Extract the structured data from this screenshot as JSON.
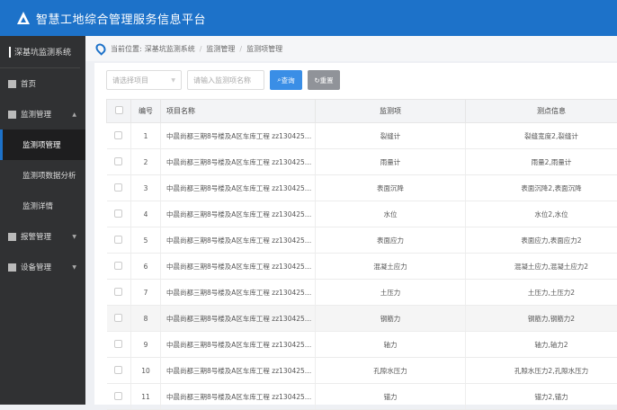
{
  "header": {
    "title": "智慧工地综合管理服务信息平台"
  },
  "sidebar": {
    "system": "深基坑监测系统",
    "items": [
      {
        "label": "首页"
      },
      {
        "label": "监测管理"
      },
      {
        "label": "监测项管理"
      },
      {
        "label": "监测项数据分析"
      },
      {
        "label": "监测详情"
      },
      {
        "label": "报警管理"
      },
      {
        "label": "设备管理"
      }
    ]
  },
  "breadcrumb": {
    "prefix": "当前位置:",
    "items": [
      "深基坑监测系统",
      "监测管理",
      "监测项管理"
    ]
  },
  "filters": {
    "project_placeholder": "请选择项目",
    "name_placeholder": "请输入监测项名称",
    "search": "查询",
    "reset": "重置"
  },
  "colors": {
    "brand": "#1d72c9",
    "sidebar": "#303133"
  },
  "table": {
    "headers": [
      "编号",
      "项目名称",
      "监测项",
      "测点信息"
    ],
    "rows": [
      [
        "1",
        "中晨尚都三期8号楼及A区车库工程 zz130425201...",
        "裂缝计",
        "裂缝宽度2,裂缝计"
      ],
      [
        "2",
        "中晨尚都三期8号楼及A区车库工程 zz130425201...",
        "雨量计",
        "雨量2,雨量计"
      ],
      [
        "3",
        "中晨尚都三期8号楼及A区车库工程 zz130425201...",
        "表面沉降",
        "表面沉降2,表面沉降"
      ],
      [
        "4",
        "中晨尚都三期8号楼及A区车库工程 zz130425201...",
        "水位",
        "水位2,水位"
      ],
      [
        "5",
        "中晨尚都三期8号楼及A区车库工程 zz130425201...",
        "表面应力",
        "表面应力,表面应力2"
      ],
      [
        "6",
        "中晨尚都三期8号楼及A区车库工程 zz130425201...",
        "混凝土应力",
        "混凝土应力,混凝土应力2"
      ],
      [
        "7",
        "中晨尚都三期8号楼及A区车库工程 zz130425201...",
        "土压力",
        "土压力,土压力2"
      ],
      [
        "8",
        "中晨尚都三期8号楼及A区车库工程 zz130425201...",
        "钢筋力",
        "钢筋力,钢筋力2"
      ],
      [
        "9",
        "中晨尚都三期8号楼及A区车库工程 zz130425201...",
        "轴力",
        "轴力,轴力2"
      ],
      [
        "10",
        "中晨尚都三期8号楼及A区车库工程 zz130425201...",
        "孔隙水压力",
        "孔隙水压力2,孔隙水压力"
      ],
      [
        "11",
        "中晨尚都三期8号楼及A区车库工程 zz130425201...",
        "锚力",
        "锚力2,锚力"
      ]
    ]
  }
}
